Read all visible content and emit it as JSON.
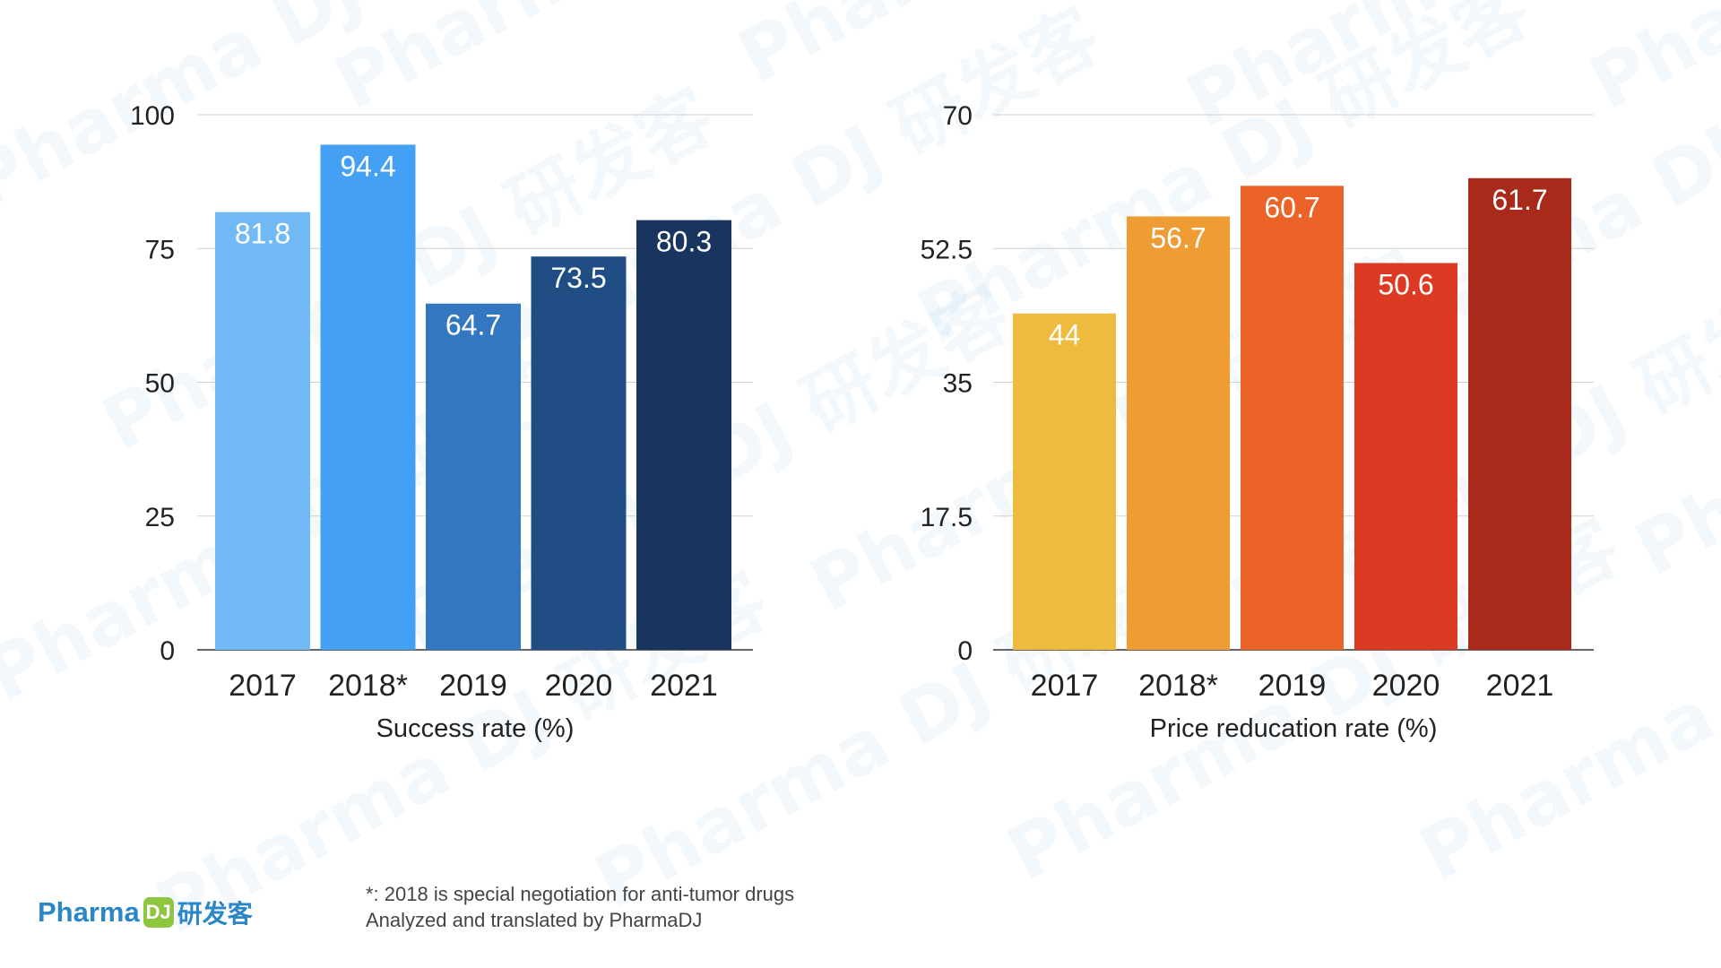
{
  "brand": {
    "name": "Pharma",
    "mark": "DJ",
    "cn": "研发客"
  },
  "watermark": {
    "text": "Pharma DJ 研发客"
  },
  "footnote": {
    "line1": "*: 2018 is special negotiation for anti-tumor drugs",
    "line2": "Analyzed and  translated by PharmaDJ"
  },
  "chart_data": [
    {
      "type": "bar",
      "title": "",
      "xlabel": "Success rate (%)",
      "ylabel": "",
      "categories": [
        "2017",
        "2018*",
        "2019",
        "2020",
        "2021"
      ],
      "values": [
        81.8,
        94.4,
        64.7,
        73.5,
        80.3
      ],
      "value_labels": [
        "81.8",
        "94.4",
        "64.7",
        "73.5",
        "80.3"
      ],
      "yticks": [
        0,
        25,
        50,
        75,
        100
      ],
      "ytick_labels": [
        "0",
        "25",
        "50",
        "75",
        "100"
      ],
      "ylim": [
        0,
        100
      ],
      "grid": true,
      "legend": "none",
      "colors": [
        "#72baf6",
        "#43a0f5",
        "#3477c1",
        "#1f4d84",
        "#19355f"
      ]
    },
    {
      "type": "bar",
      "title": "",
      "xlabel": "Price reducation rate (%)",
      "ylabel": "",
      "categories": [
        "2017",
        "2018*",
        "2019",
        "2020",
        "2021"
      ],
      "values": [
        44,
        56.7,
        60.7,
        50.6,
        61.7
      ],
      "value_labels": [
        "44",
        "56.7",
        "60.7",
        "50.6",
        "61.7"
      ],
      "yticks": [
        0,
        17.5,
        35,
        52.5,
        70
      ],
      "ytick_labels": [
        "0",
        "17.5",
        "35",
        "52.5",
        "70"
      ],
      "ylim": [
        0,
        70
      ],
      "grid": true,
      "legend": "none",
      "colors": [
        "#efbb3e",
        "#ef9c34",
        "#eb6327",
        "#dd3a24",
        "#a9291a"
      ]
    }
  ]
}
